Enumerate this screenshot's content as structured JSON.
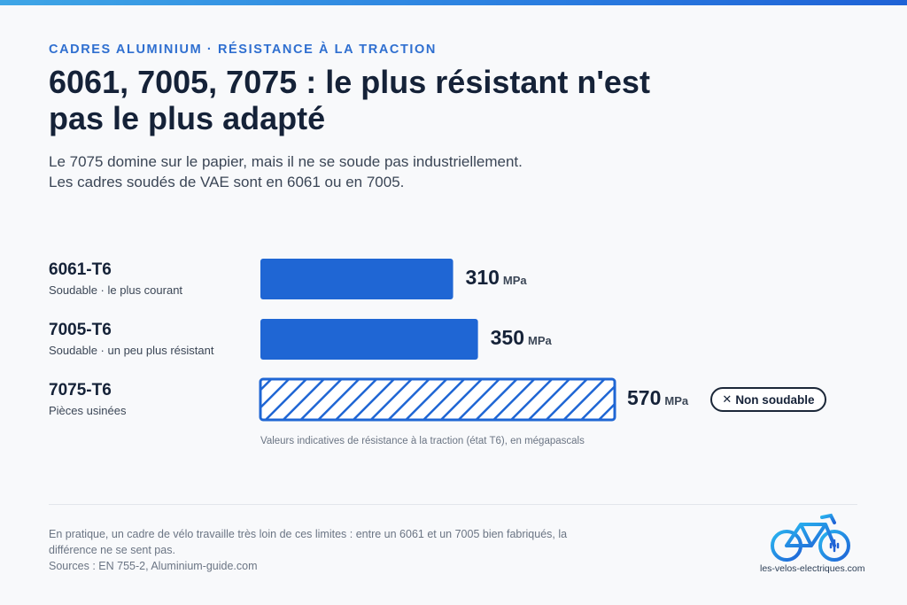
{
  "header": {
    "eyebrow": "CADRES ALUMINIUM · RÉSISTANCE À LA TRACTION",
    "title": "6061, 7005, 7075 : le plus résistant n'est pas le plus adapté",
    "subtitle_lines": [
      "Le 7075 domine sur le papier, mais il ne se soude pas industriellement.",
      "Les cadres soudés de VAE sont en 6061 ou en 7005."
    ]
  },
  "colors": {
    "accent": "#2f6fd0",
    "bar": "#1f66d4",
    "title": "#152238",
    "muted": "#6b7584"
  },
  "chart_data": {
    "type": "bar",
    "orientation": "horizontal",
    "categories": [
      "6061-T6",
      "7005-T6",
      "7075-T6"
    ],
    "category_subtitles": [
      "Soudable · le plus courant",
      "Soudable · un peu plus résistant",
      "Pièces usinées"
    ],
    "values": [
      310,
      350,
      570
    ],
    "value_labels": [
      "310",
      "350",
      "570"
    ],
    "unit": "MPa",
    "bar_styles": [
      "solid",
      "solid",
      "hatched"
    ],
    "xlim": [
      0,
      570
    ],
    "grid": false,
    "annotation": {
      "category": "7075-T6",
      "icon": "close-icon",
      "text": "Non soudable"
    },
    "caption": "Valeurs indicatives de résistance à la traction (état T6), en mégapascals"
  },
  "footer": {
    "note_lines": [
      "En pratique, un cadre de vélo travaille très loin de ces limites : entre un 6061 et un 7005 bien fabriqués, la",
      "différence ne se sent pas."
    ],
    "sources": "Sources : EN 755-2, Aluminium-guide.com",
    "logo_icon": "electric-bike-logo-icon",
    "logo_text": "les-velos-electriques.com"
  }
}
